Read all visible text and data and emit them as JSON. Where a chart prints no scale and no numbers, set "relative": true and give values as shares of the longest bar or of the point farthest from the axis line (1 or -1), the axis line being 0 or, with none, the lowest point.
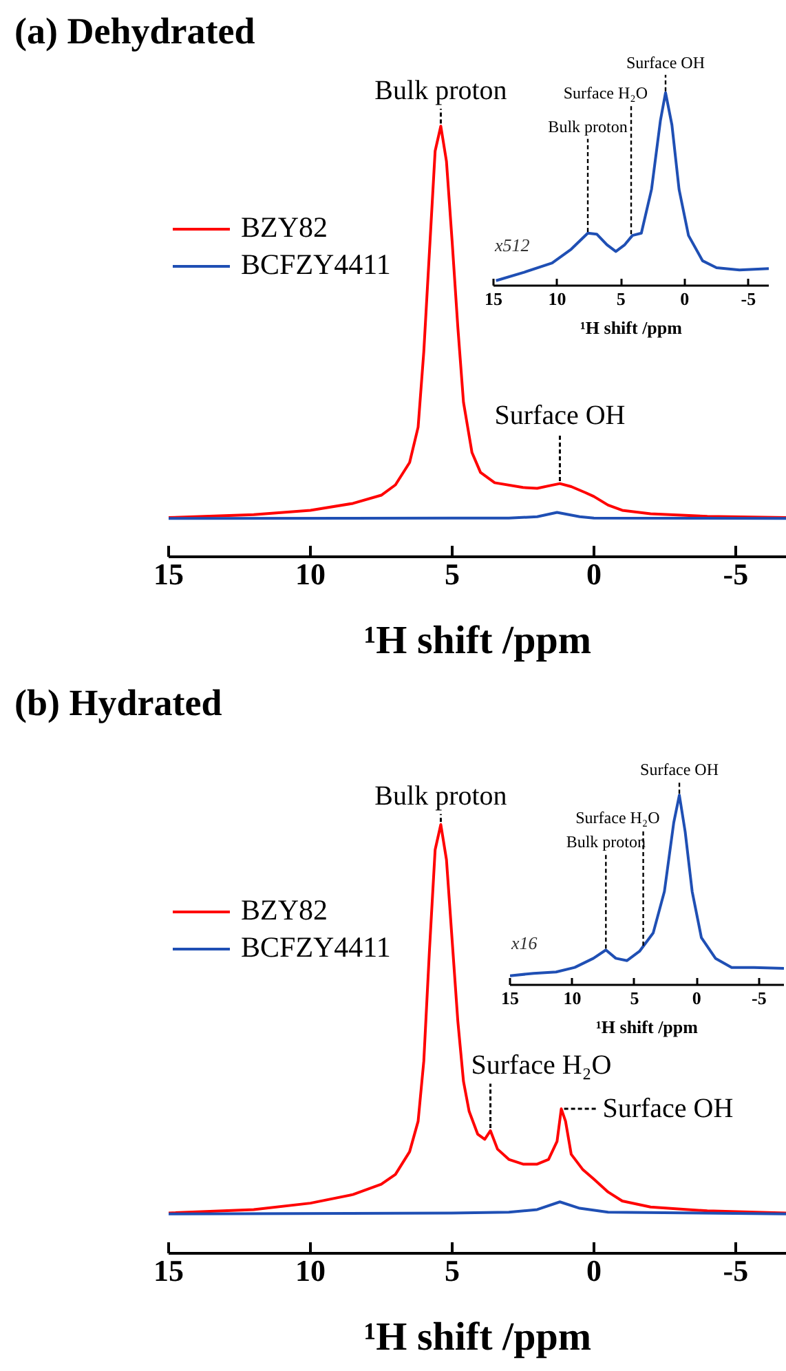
{
  "chart_data": [
    {
      "type": "line",
      "title": "(a) Dehydrated",
      "xlabel": "¹H shift /ppm",
      "xlim": [
        15,
        -6.8
      ],
      "xticks": [
        15,
        10,
        5,
        0,
        -5
      ],
      "relative": true,
      "legend": "left",
      "series": [
        {
          "name": "BZY82",
          "color": "#ff0000",
          "x": [
            15,
            12,
            10,
            8.5,
            7.5,
            7,
            6.5,
            6.2,
            6.0,
            5.8,
            5.6,
            5.4,
            5.2,
            5.0,
            4.8,
            4.6,
            4.3,
            4.0,
            3.5,
            2.5,
            2.0,
            1.5,
            1.2,
            0.8,
            0.3,
            0,
            -0.5,
            -1,
            -2,
            -4,
            -6.8
          ],
          "values": [
            0.091,
            0.098,
            0.108,
            0.124,
            0.143,
            0.167,
            0.219,
            0.301,
            0.476,
            0.709,
            0.942,
            1.0,
            0.918,
            0.732,
            0.534,
            0.359,
            0.242,
            0.196,
            0.172,
            0.161,
            0.159,
            0.166,
            0.17,
            0.163,
            0.149,
            0.14,
            0.12,
            0.108,
            0.1,
            0.094,
            0.091
          ]
        },
        {
          "name": "BCFZY4411",
          "color": "#1f4fb4",
          "x": [
            15,
            5,
            3,
            2,
            1.3,
            0.5,
            0,
            -6.8
          ],
          "values": [
            0.089,
            0.09,
            0.09,
            0.093,
            0.103,
            0.093,
            0.09,
            0.089
          ]
        }
      ],
      "annotations": [
        {
          "text": "Bulk proton",
          "x": 5.4,
          "y": 1.0
        },
        {
          "text": "Surface OH",
          "x": 1.2,
          "y": 0.17
        }
      ]
    },
    {
      "type": "line",
      "xlabel": "¹H shift /ppm",
      "xlim": [
        15,
        -6.6
      ],
      "xticks": [
        15,
        10,
        5,
        0,
        -5
      ],
      "relative": true,
      "series": [
        {
          "color": "#1f4fb4",
          "x": [
            14.8,
            12.6,
            10.4,
            8.9,
            7.6,
            6.9,
            6.1,
            5.4,
            4.7,
            4.1,
            3.4,
            2.6,
            1.9,
            1.5,
            1.0,
            0.44,
            -0.3,
            -1.4,
            -2.5,
            -4.3,
            -6.6
          ],
          "values": [
            0.026,
            0.069,
            0.117,
            0.189,
            0.272,
            0.267,
            0.212,
            0.177,
            0.212,
            0.26,
            0.272,
            0.499,
            0.857,
            1.0,
            0.833,
            0.499,
            0.26,
            0.129,
            0.093,
            0.081,
            0.088
          ]
        }
      ],
      "annotations": [
        "x512",
        {
          "text": "Bulk proton",
          "x": 7.6,
          "y": 0.272
        },
        {
          "text": "Surface H₂O",
          "x": 4.2,
          "y": 0.26
        },
        {
          "text": "Surface OH",
          "x": 1.5,
          "y": 1.0
        }
      ]
    },
    {
      "type": "line",
      "title": "(b) Hydrated",
      "xlabel": "¹H shift /ppm",
      "xlim": [
        15,
        -6.8
      ],
      "xticks": [
        15,
        10,
        5,
        0,
        -5
      ],
      "relative": true,
      "legend": "left",
      "series": [
        {
          "name": "BZY82",
          "color": "#ff0000",
          "x": [
            15,
            12,
            10,
            8.5,
            7.5,
            7,
            6.5,
            6.2,
            6.0,
            5.8,
            5.6,
            5.4,
            5.2,
            5.0,
            4.8,
            4.6,
            4.4,
            4.1,
            3.85,
            3.65,
            3.4,
            3.0,
            2.5,
            2.0,
            1.6,
            1.3,
            1.15,
            1.0,
            0.8,
            0.4,
            0,
            -0.5,
            -1,
            -2,
            -4,
            -6.8
          ],
          "values": [
            0.094,
            0.102,
            0.117,
            0.137,
            0.161,
            0.184,
            0.237,
            0.308,
            0.448,
            0.707,
            0.941,
            1.0,
            0.918,
            0.73,
            0.542,
            0.401,
            0.331,
            0.278,
            0.266,
            0.286,
            0.243,
            0.219,
            0.208,
            0.208,
            0.219,
            0.261,
            0.337,
            0.308,
            0.231,
            0.196,
            0.173,
            0.143,
            0.122,
            0.108,
            0.099,
            0.094
          ]
        },
        {
          "name": "BCFZY4411",
          "color": "#1f4fb4",
          "x": [
            15,
            5,
            3,
            2,
            1.2,
            0.5,
            -0.5,
            -6.8
          ],
          "values": [
            0.092,
            0.094,
            0.096,
            0.102,
            0.12,
            0.105,
            0.096,
            0.092
          ]
        }
      ],
      "annotations": [
        {
          "text": "Bulk proton",
          "x": 5.4,
          "y": 1.0
        },
        {
          "text": "Surface H₂O",
          "x": 3.65,
          "y": 0.286
        },
        {
          "text": "Surface OH",
          "x": 1.15,
          "y": 0.337
        }
      ]
    },
    {
      "type": "line",
      "xlabel": "¹H shift /ppm",
      "xlim": [
        15,
        -7
      ],
      "xticks": [
        15,
        10,
        5,
        0,
        -5
      ],
      "relative": true,
      "series": [
        {
          "color": "#1f4fb4",
          "x": [
            15,
            13.1,
            11.3,
            9.8,
            8.3,
            7.3,
            6.5,
            5.6,
            4.6,
            3.5,
            2.6,
            1.85,
            1.4,
            0.93,
            0.37,
            -0.37,
            -1.5,
            -2.8,
            -4.6,
            -7
          ],
          "values": [
            0.048,
            0.061,
            0.068,
            0.092,
            0.14,
            0.184,
            0.14,
            0.128,
            0.177,
            0.274,
            0.492,
            0.855,
            1.0,
            0.806,
            0.492,
            0.249,
            0.14,
            0.092,
            0.092,
            0.087
          ]
        }
      ],
      "annotations": [
        "x16",
        {
          "text": "Bulk proton",
          "x": 7.3,
          "y": 0.184
        },
        {
          "text": "Surface H₂O",
          "x": 4.3,
          "y": 0.2
        },
        {
          "text": "Surface OH",
          "x": 1.4,
          "y": 1.0
        }
      ]
    }
  ]
}
